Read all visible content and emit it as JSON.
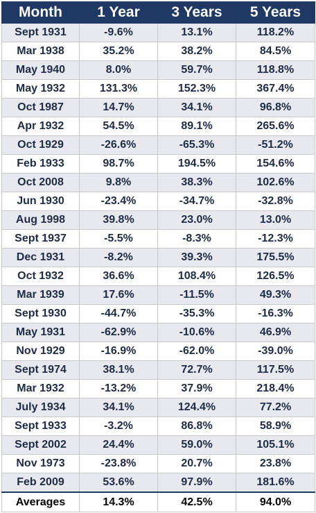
{
  "chart_data": {
    "type": "table",
    "columns": [
      "Month",
      "1 Year",
      "3 Years",
      "5 Years"
    ],
    "rows": [
      [
        "Sept 1931",
        "-9.6%",
        "13.1%",
        "118.2%"
      ],
      [
        "Mar 1938",
        "35.2%",
        "38.2%",
        "84.5%"
      ],
      [
        "May 1940",
        "8.0%",
        "59.7%",
        "118.8%"
      ],
      [
        "May 1932",
        "131.3%",
        "152.3%",
        "367.4%"
      ],
      [
        "Oct 1987",
        "14.7%",
        "34.1%",
        "96.8%"
      ],
      [
        "Apr 1932",
        "54.5%",
        "89.1%",
        "265.6%"
      ],
      [
        "Oct 1929",
        "-26.6%",
        "-65.3%",
        "-51.2%"
      ],
      [
        "Feb 1933",
        "98.7%",
        "194.5%",
        "154.6%"
      ],
      [
        "Oct 2008",
        "9.8%",
        "38.3%",
        "102.6%"
      ],
      [
        "Jun 1930",
        "-23.4%",
        "-34.7%",
        "-32.8%"
      ],
      [
        "Aug 1998",
        "39.8%",
        "23.0%",
        "13.0%"
      ],
      [
        "Sept 1937",
        "-5.5%",
        "-8.3%",
        "-12.3%"
      ],
      [
        "Dec 1931",
        "-8.2%",
        "39.3%",
        "175.5%"
      ],
      [
        "Oct 1932",
        "36.6%",
        "108.4%",
        "126.5%"
      ],
      [
        "Mar 1939",
        "17.6%",
        "-11.5%",
        "49.3%"
      ],
      [
        "Sept 1930",
        "-44.7%",
        "-35.3%",
        "-16.3%"
      ],
      [
        "May 1931",
        "-62.9%",
        "-10.6%",
        "46.9%"
      ],
      [
        "Nov 1929",
        "-16.9%",
        "-62.0%",
        "-39.0%"
      ],
      [
        "Sept 1974",
        "38.1%",
        "72.7%",
        "117.5%"
      ],
      [
        "Mar 1932",
        "-13.2%",
        "37.9%",
        "218.4%"
      ],
      [
        "July 1934",
        "34.1%",
        "124.4%",
        "77.2%"
      ],
      [
        "Sept 1933",
        "-3.2%",
        "86.8%",
        "58.9%"
      ],
      [
        "Sept 2002",
        "24.4%",
        "59.0%",
        "105.1%"
      ],
      [
        "Nov 1973",
        "-23.8%",
        "20.7%",
        "23.8%"
      ],
      [
        "Feb 2009",
        "53.6%",
        "97.9%",
        "181.6%"
      ]
    ],
    "footer": [
      "Averages",
      "14.3%",
      "42.5%",
      "94.0%"
    ]
  },
  "colors": {
    "header_bg": "#1f3864",
    "header_text": "#ffffff",
    "row_alt_bg": "#e7e9ee",
    "body_text": "#1f2a44"
  }
}
